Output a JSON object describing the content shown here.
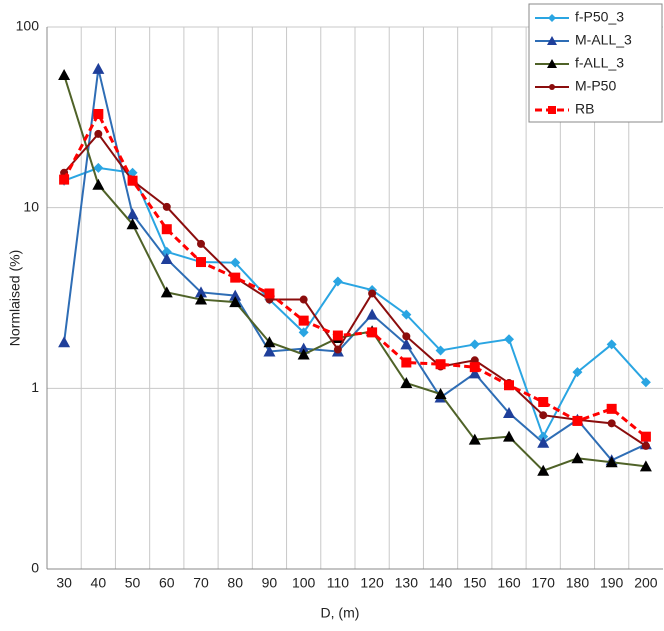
{
  "chart_data": {
    "type": "line",
    "x_label": "D, (m)",
    "y_label": "Normlaised  (%)",
    "x": [
      30,
      40,
      50,
      60,
      70,
      80,
      90,
      100,
      110,
      120,
      130,
      140,
      150,
      160,
      170,
      180,
      190,
      200
    ],
    "xlim": [
      25,
      205
    ],
    "xticks": [
      30,
      40,
      50,
      60,
      70,
      80,
      90,
      100,
      110,
      120,
      130,
      140,
      150,
      160,
      170,
      180,
      190,
      200
    ],
    "ylim": [
      0.1,
      100
    ],
    "log_y": true,
    "yticks": [
      {
        "value": 0.1,
        "label": "0"
      },
      1,
      10,
      100
    ],
    "grid": true,
    "legend": "upper right",
    "series": [
      {
        "name": "f-P50_3",
        "color": "#2aa5e2",
        "marker": "diamond",
        "marker_color": "#2aa5e2",
        "dashed": false,
        "values": [
          14.1,
          16.6,
          15.6,
          5.7,
          5.0,
          4.96,
          3.1,
          2.04,
          3.9,
          3.5,
          2.56,
          1.62,
          1.75,
          1.87,
          0.54,
          1.23,
          1.75,
          1.08
        ]
      },
      {
        "name": "M-ALL_3",
        "color": "#2e6db5",
        "marker": "triangle",
        "marker_color": "#1f3f9a",
        "dashed": false,
        "values": [
          1.8,
          58.6,
          9.2,
          5.2,
          3.4,
          3.26,
          1.6,
          1.66,
          1.6,
          2.56,
          1.75,
          0.89,
          1.21,
          0.73,
          0.5,
          0.67,
          0.4,
          0.49
        ]
      },
      {
        "name": "f-ALL_3",
        "color": "#4f6228",
        "marker": "triangle",
        "marker_color": "#000000",
        "dashed": false,
        "values": [
          54.2,
          13.4,
          8.1,
          3.4,
          3.1,
          3.0,
          1.8,
          1.54,
          1.9,
          2.07,
          1.07,
          0.93,
          0.52,
          0.54,
          0.35,
          0.41,
          0.39,
          0.37
        ]
      },
      {
        "name": "M-P50",
        "color": "#8b0d0d",
        "marker": "circle",
        "marker_color": "#8b0d0d",
        "dashed": false,
        "values": [
          15.6,
          25.6,
          14.1,
          10.1,
          6.3,
          4.1,
          3.1,
          3.1,
          1.64,
          3.35,
          1.94,
          1.32,
          1.43,
          1.07,
          0.71,
          0.67,
          0.64,
          0.48
        ]
      },
      {
        "name": "RB",
        "color": "#ff0000",
        "marker": "square",
        "marker_color": "#ff0000",
        "dashed": true,
        "values": [
          14.3,
          33,
          14.1,
          7.6,
          5.0,
          4.1,
          3.35,
          2.37,
          1.96,
          2.04,
          1.39,
          1.36,
          1.31,
          1.04,
          0.84,
          0.66,
          0.77,
          0.54
        ]
      }
    ]
  }
}
